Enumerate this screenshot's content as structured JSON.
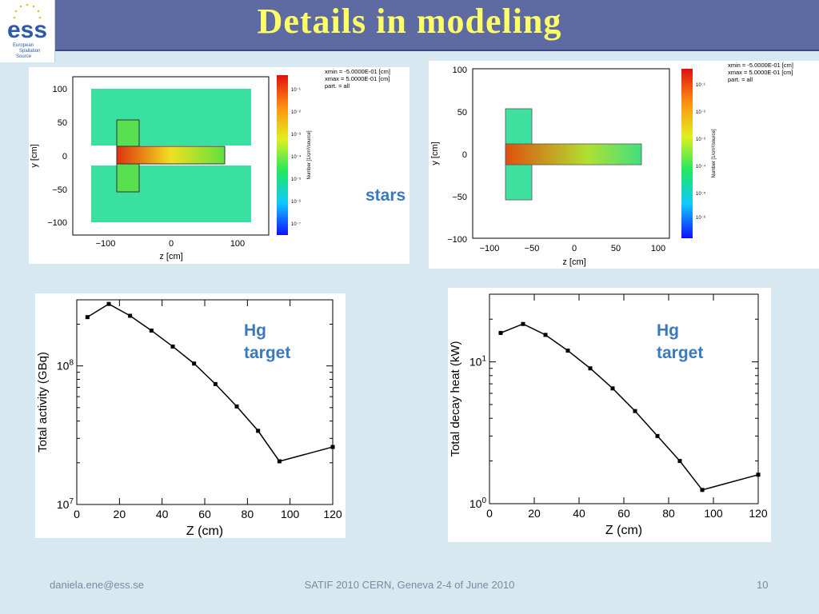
{
  "slide": {
    "title": "Details in modeling",
    "stars_label": "stars",
    "annotation_left": [
      "Hg",
      "target"
    ],
    "annotation_right": [
      "Hg",
      "target"
    ],
    "footer_left": "daniela.ene@ess.se",
    "footer_center": "SATIF 2010 CERN, Geneva 2-4 of June 2010",
    "footer_right": "10"
  },
  "logo": {
    "text": "ess",
    "lines": [
      "European",
      "Spallation",
      "Source"
    ]
  },
  "maps": [
    {
      "info": [
        "xmin  =  -5.0000E-01 [cm]",
        "xmax  =   5.0000E-01 [cm]",
        "part. =   all"
      ],
      "xlabel": "z [cm]",
      "ylabel": "y [cm]",
      "xticks": [
        "−100",
        "0",
        "100"
      ],
      "yticks": [
        "100",
        "50",
        "0",
        "−50",
        "−100"
      ],
      "colorbar_label": "Number [1/cm³/source]",
      "colorbar_ticks": [
        "10⁻¹",
        "10⁻²",
        "10⁻³",
        "10⁻⁴",
        "10⁻⁵",
        "10⁻⁶",
        "10⁻⁷"
      ]
    },
    {
      "info": [
        "xmin  =  -5.0000E-01 [cm]",
        "xmax  =   5.0000E-01 [cm]",
        "part. =   all"
      ],
      "xlabel": "z [cm]",
      "ylabel": "y [cm]",
      "xticks": [
        "−100",
        "−50",
        "0",
        "50",
        "100"
      ],
      "yticks": [
        "100",
        "50",
        "0",
        "−50",
        "−100"
      ],
      "colorbar_label": "Number [1/cm³/source]",
      "colorbar_ticks": [
        "10⁻¹",
        "10⁻²",
        "10⁻³",
        "10⁻⁴",
        "10⁻⁵",
        "10⁻⁶"
      ]
    }
  ],
  "colors": {
    "line": "#000000",
    "annotation": "#3a78c0",
    "title": "#ffff66",
    "header": "#5e6ba3"
  },
  "chart_data": [
    {
      "type": "line",
      "xlabel": "Z (cm)",
      "ylabel": "Total activity (GBq)",
      "yscale": "log",
      "xlim": [
        0,
        120
      ],
      "ylim": [
        10000000,
        300000000
      ],
      "xticks": [
        0,
        20,
        40,
        60,
        80,
        100,
        120
      ],
      "yticks": [
        {
          "value": 10000000,
          "base": "10",
          "exp": "7"
        },
        {
          "value": 100000000,
          "base": "10",
          "exp": "8"
        }
      ],
      "x": [
        5,
        15,
        25,
        35,
        45,
        55,
        65,
        75,
        85,
        95,
        120
      ],
      "y": [
        225000000,
        280000000,
        230000000,
        180000000,
        138000000,
        104000000,
        74000000,
        51000000,
        34000000,
        20500000,
        26000000
      ]
    },
    {
      "type": "line",
      "xlabel": "Z (cm)",
      "ylabel": "Total decay heat (kW)",
      "yscale": "log",
      "xlim": [
        0,
        120
      ],
      "ylim": [
        1,
        30
      ],
      "xticks": [
        0,
        20,
        40,
        60,
        80,
        100,
        120
      ],
      "yticks": [
        {
          "value": 1,
          "base": "10",
          "exp": "0"
        },
        {
          "value": 10,
          "base": "10",
          "exp": "1"
        }
      ],
      "x": [
        5,
        15,
        25,
        35,
        45,
        55,
        65,
        75,
        85,
        95,
        120
      ],
      "y": [
        16,
        18.5,
        15.5,
        12,
        9,
        6.5,
        4.5,
        3.0,
        2.0,
        1.25,
        1.6
      ]
    }
  ]
}
